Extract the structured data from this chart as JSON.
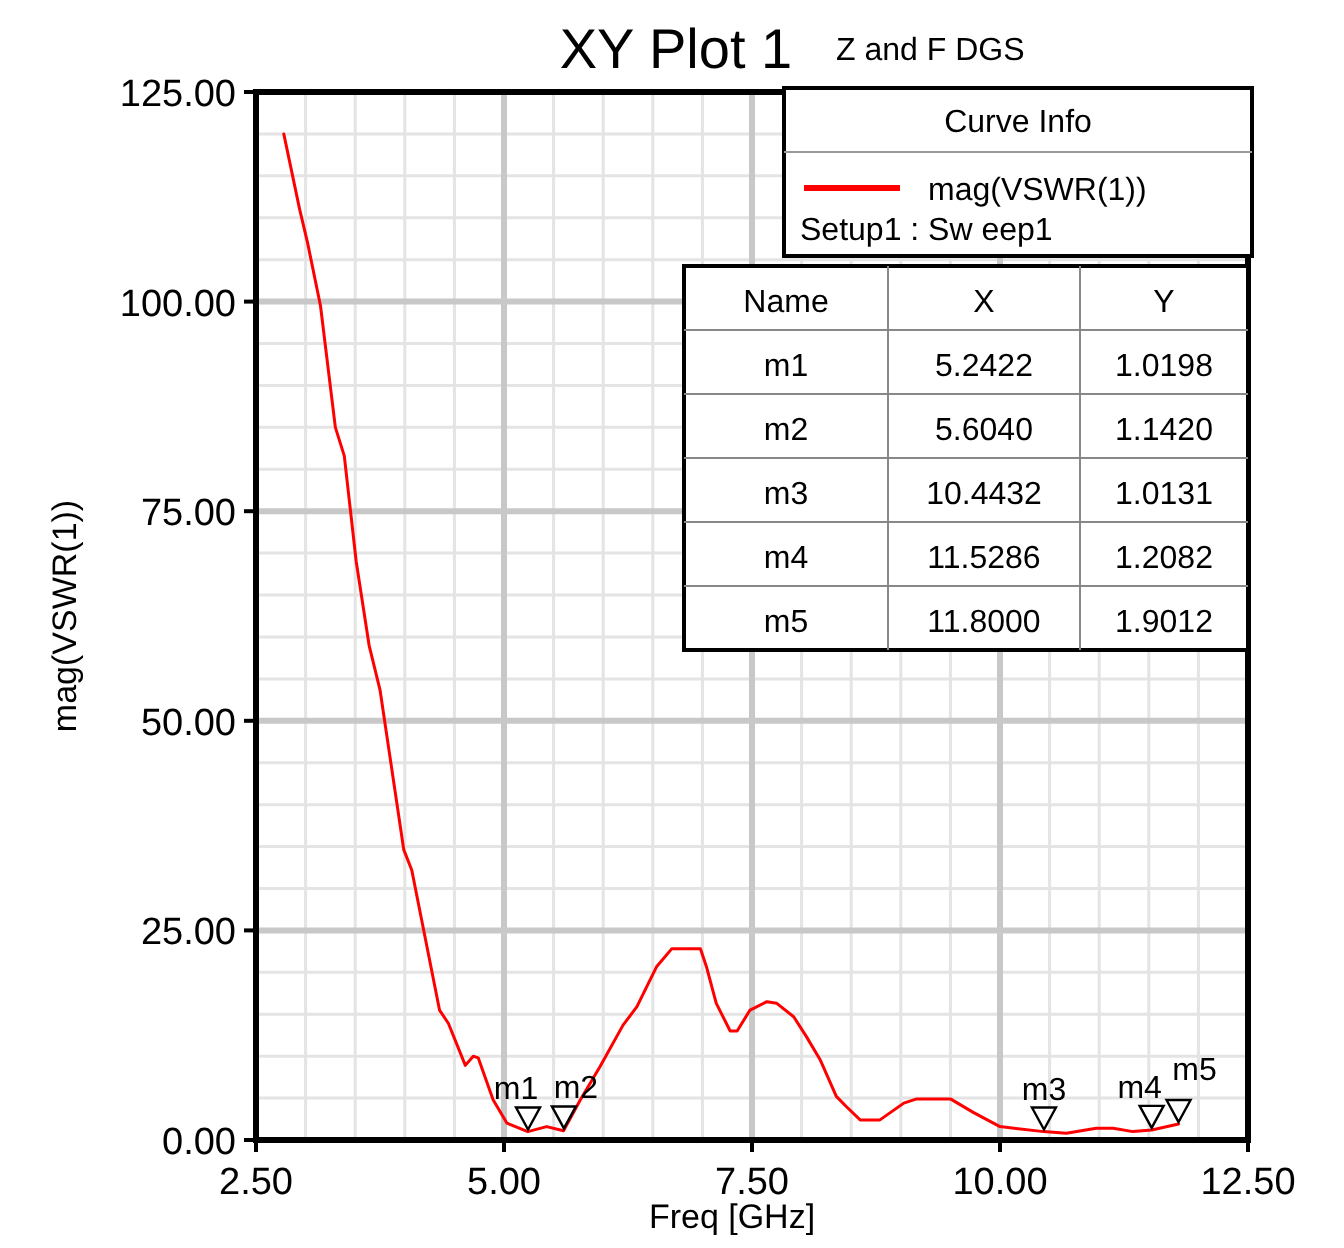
{
  "chart_data": {
    "type": "line",
    "title": "XY Plot 1",
    "subtitle": "Z and F DGS",
    "xlabel": "Freq [GHz]",
    "ylabel": "mag(VSWR(1))",
    "legend_title": "Curve Info",
    "legend": "top right",
    "grid": true,
    "xlim": [
      2.5,
      12.5
    ],
    "xticks": [
      {
        "value": 2.5,
        "label": "2.50"
      },
      {
        "value": 5,
        "label": "5.00"
      },
      {
        "value": 7.5,
        "label": "7.50"
      },
      {
        "value": 10,
        "label": "10.00"
      },
      {
        "value": 12.5,
        "label": "12.50"
      }
    ],
    "ylim": [
      0,
      125
    ],
    "yticks": [
      {
        "value": 0,
        "label": "0.00"
      },
      {
        "value": 25,
        "label": "25.00"
      },
      {
        "value": 50,
        "label": "50.00"
      },
      {
        "value": 75,
        "label": "75.00"
      },
      {
        "value": 100,
        "label": "100.00"
      },
      {
        "value": 125,
        "label": "125.00"
      }
    ],
    "series": [
      {
        "name": "mag(VSWR(1))",
        "color": "#ff0000",
        "x": [
          2.78,
          2.94,
          3.02,
          3.15,
          3.3,
          3.39,
          3.51,
          3.64,
          3.75,
          3.99,
          4.07,
          4.35,
          4.44,
          4.61,
          4.69,
          4.74,
          4.89,
          5.03,
          5.24,
          5.43,
          5.6,
          5.77,
          5.97,
          6.2,
          6.34,
          6.54,
          6.69,
          6.98,
          7.04,
          7.14,
          7.28,
          7.35,
          7.48,
          7.65,
          7.75,
          7.92,
          8.05,
          8.19,
          8.35,
          8.45,
          8.59,
          8.79,
          9.03,
          9.16,
          9.5,
          9.73,
          10.0,
          10.44,
          10.67,
          10.97,
          11.14,
          11.34,
          11.53,
          11.8
        ],
        "values": [
          120,
          111,
          107,
          99.5,
          85,
          81.6,
          69,
          59,
          53.7,
          34.6,
          32.2,
          15.5,
          13.9,
          8.9,
          10,
          9.8,
          4.8,
          2.0,
          1.0,
          1.6,
          1.1,
          4.8,
          8.8,
          13.7,
          15.9,
          20.7,
          22.8,
          22.8,
          20.7,
          16.3,
          13,
          13,
          15.5,
          16.5,
          16.3,
          14.7,
          12.3,
          9.5,
          5.2,
          4.0,
          2.4,
          2.4,
          4.4,
          4.9,
          4.9,
          3.3,
          1.6,
          1.0,
          0.8,
          1.4,
          1.4,
          1.0,
          1.2,
          1.9
        ]
      }
    ],
    "annotations": [
      {
        "text": "m1",
        "x": 5.2422,
        "y": 1.0198
      },
      {
        "text": "m2",
        "x": 5.604,
        "y": 1.142
      },
      {
        "text": "m3",
        "x": 10.4432,
        "y": 1.0131
      },
      {
        "text": "m4",
        "x": 11.5286,
        "y": 1.2082
      },
      {
        "text": "m5",
        "x": 11.8,
        "y": 1.9012
      },
      "Setup1 : Sw eep1",
      "Name",
      "X",
      "Y",
      "5.2422",
      "1.0198",
      "5.6040",
      "1.1420",
      "10.4432",
      "1.0131",
      "11.5286",
      "1.2082",
      "11.8000",
      "1.9012"
    ]
  }
}
